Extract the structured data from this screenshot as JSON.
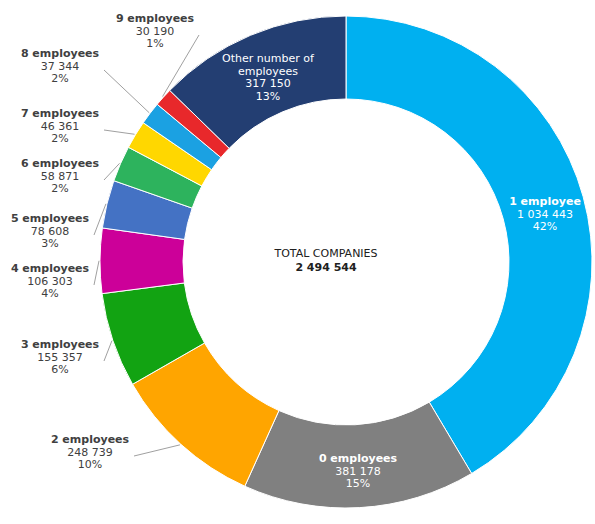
{
  "chart_data": {
    "type": "donut",
    "center_title": "TOTAL COMPANIES",
    "total": 2494544,
    "total_label": "2 494 544",
    "categories": [
      "1 employee",
      "0 employees",
      "2 employees",
      "3 employees",
      "4 employees",
      "5 employees",
      "6 employees",
      "7 employees",
      "8 employees",
      "9 employees",
      "Other number of employees"
    ],
    "values": [
      1034443,
      381178,
      248739,
      155357,
      106303,
      78608,
      58871,
      46361,
      37344,
      30190,
      317150
    ],
    "value_labels": [
      "1 034 443",
      "381 178",
      "248 739",
      "155 357",
      "106 303",
      "78 608",
      "58 871",
      "46 361",
      "37 344",
      "30 190",
      "317 150"
    ],
    "percentages": [
      42,
      15,
      10,
      6,
      4,
      3,
      2,
      2,
      2,
      1,
      13
    ],
    "percentage_labels": [
      "42%",
      "15%",
      "10%",
      "6%",
      "4%",
      "3%",
      "2%",
      "2%",
      "2%",
      "1%",
      "13%"
    ],
    "colors": [
      "#00b0f0",
      "#808080",
      "#ffa500",
      "#12a312",
      "#cc0099",
      "#4472c4",
      "#2db35d",
      "#ffd700",
      "#1ba1e2",
      "#e8282b",
      "#233e72"
    ],
    "data_labels": true
  }
}
